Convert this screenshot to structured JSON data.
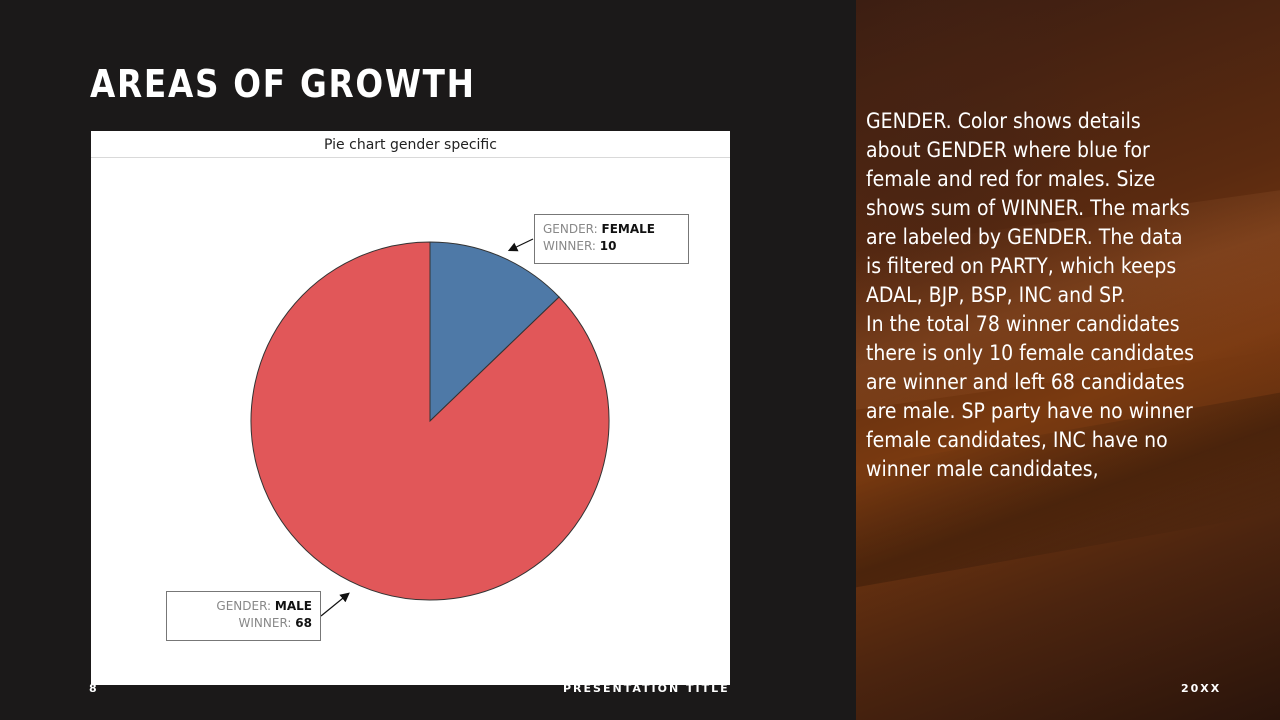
{
  "slide": {
    "title": "AREAS OF GROWTH",
    "description": "GENDER. Color shows details about GENDER where blue for female and red for males. Size shows sum of WINNER. The marks are labeled by GENDER. The data is filtered on PARTY, which keeps ADAL, BJP, BSP, INC and SP.\nIn the total 78 winner candidates there is only 10 female candidates are winner and left 68 candidates are male. SP party have no winner female candidates, INC have no winner male candidates,",
    "footer": {
      "page_number": "8",
      "presentation_title": "PRESENTATION TITLE",
      "year": "20XX"
    }
  },
  "chart_data": {
    "type": "pie",
    "title": "Pie chart gender specific",
    "slices": [
      {
        "label": "FEMALE",
        "value": 10,
        "color": "#4e79a7"
      },
      {
        "label": "MALE",
        "value": 68,
        "color": "#e15759"
      }
    ],
    "tooltips": [
      {
        "key1": "GENDER:",
        "value1": "FEMALE",
        "key2": "WINNER:",
        "value2": "10"
      },
      {
        "key1": "GENDER:",
        "value1": "MALE",
        "key2": "WINNER:",
        "value2": "68"
      }
    ]
  }
}
